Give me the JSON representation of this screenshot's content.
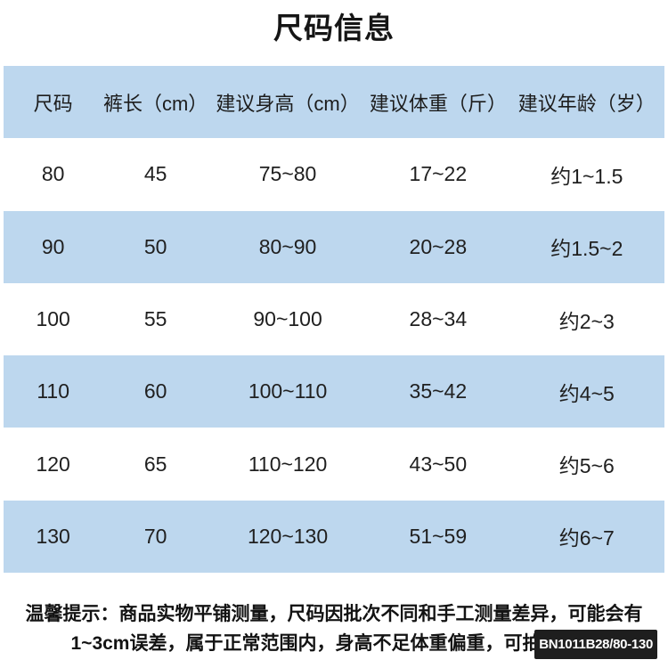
{
  "title": "尺码信息",
  "table": {
    "headers": [
      "尺码",
      "裤长（cm）",
      "建议身高（cm）",
      "建议体重（斤）",
      "建议年龄（岁）"
    ],
    "rows": [
      [
        "80",
        "45",
        "75~80",
        "17~22",
        "约1~1.5"
      ],
      [
        "90",
        "50",
        "80~90",
        "20~28",
        "约1.5~2"
      ],
      [
        "100",
        "55",
        "90~100",
        "28~34",
        "约2~3"
      ],
      [
        "110",
        "60",
        "100~110",
        "35~42",
        "约4~5"
      ],
      [
        "120",
        "65",
        "110~120",
        "43~50",
        "约5~6"
      ],
      [
        "130",
        "70",
        "120~130",
        "51~59",
        "约6~7"
      ]
    ]
  },
  "footer": {
    "line1": "温馨提示：商品实物平铺测量，尺码因批次不同和手工测量差异，可能会有",
    "line2": "1~3cm误差，属于正常范围内，身高不足体重偏重，可拍大一码"
  },
  "badge": {
    "label": "BN1011B28/80-130"
  },
  "colors": {
    "row_highlight": "#BDD7EE",
    "badge_bg": "#1E1E1E",
    "text": "#1F1F1F"
  }
}
